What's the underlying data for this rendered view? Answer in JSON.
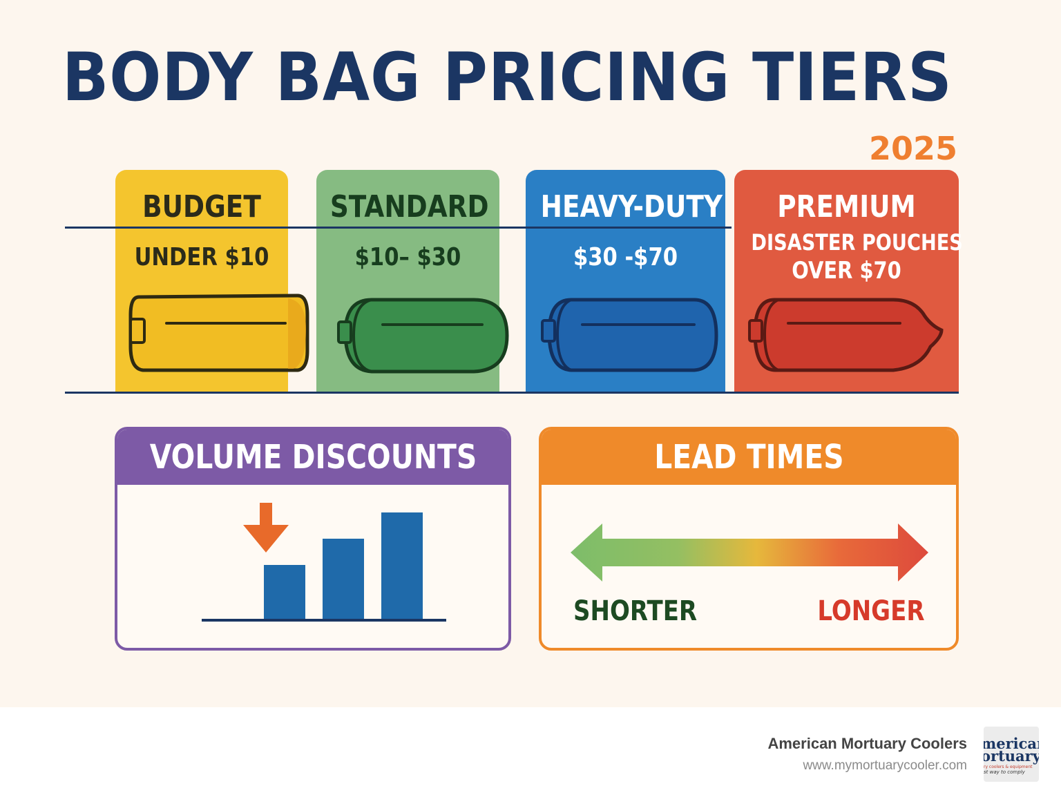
{
  "header": {
    "title": "BODY BAG PRICING TIERS",
    "year": "2025"
  },
  "tiers": [
    {
      "name": "BUDGET",
      "price": "UNDER $10",
      "price2": "",
      "color": "#f4c52e",
      "bag_color": "#f1bd23",
      "text_color": "#2b2b1a"
    },
    {
      "name": "STANDARD",
      "price": "$10– $30",
      "price2": "",
      "color": "#86bb82",
      "bag_color": "#3a8e4c",
      "text_color": "#173d1e"
    },
    {
      "name": "HEAVY-DUTY",
      "price": "$30 -$70",
      "price2": "",
      "color": "#2a7fc5",
      "bag_color": "#1f64ad",
      "text_color": "#ffffff"
    },
    {
      "name": "PREMIUM",
      "price": "DISASTER POUCHES",
      "price2": "OVER $70",
      "color": "#e05a40",
      "bag_color": "#cc3b2d",
      "text_color": "#ffffff"
    }
  ],
  "volume_discounts": {
    "title": "VOLUME DISCOUNTS",
    "header_color": "#7d5aa6",
    "arrow_color": "#e86a2a",
    "bar_color": "#1f6aaa"
  },
  "lead_times": {
    "title": "LEAD TIMES",
    "header_color": "#ef8a2a",
    "shorter_label": "SHORTER",
    "longer_label": "LONGER",
    "shorter_color": "#1d4a22",
    "longer_color": "#d63a2a"
  },
  "footer": {
    "company": "American Mortuary Coolers",
    "url": "www.mymortuarycooler.com",
    "logo_line1": "merican",
    "logo_line2": "ortuary",
    "logo_line3": "ry coolers & equipment",
    "logo_line4": "st way to comply"
  }
}
